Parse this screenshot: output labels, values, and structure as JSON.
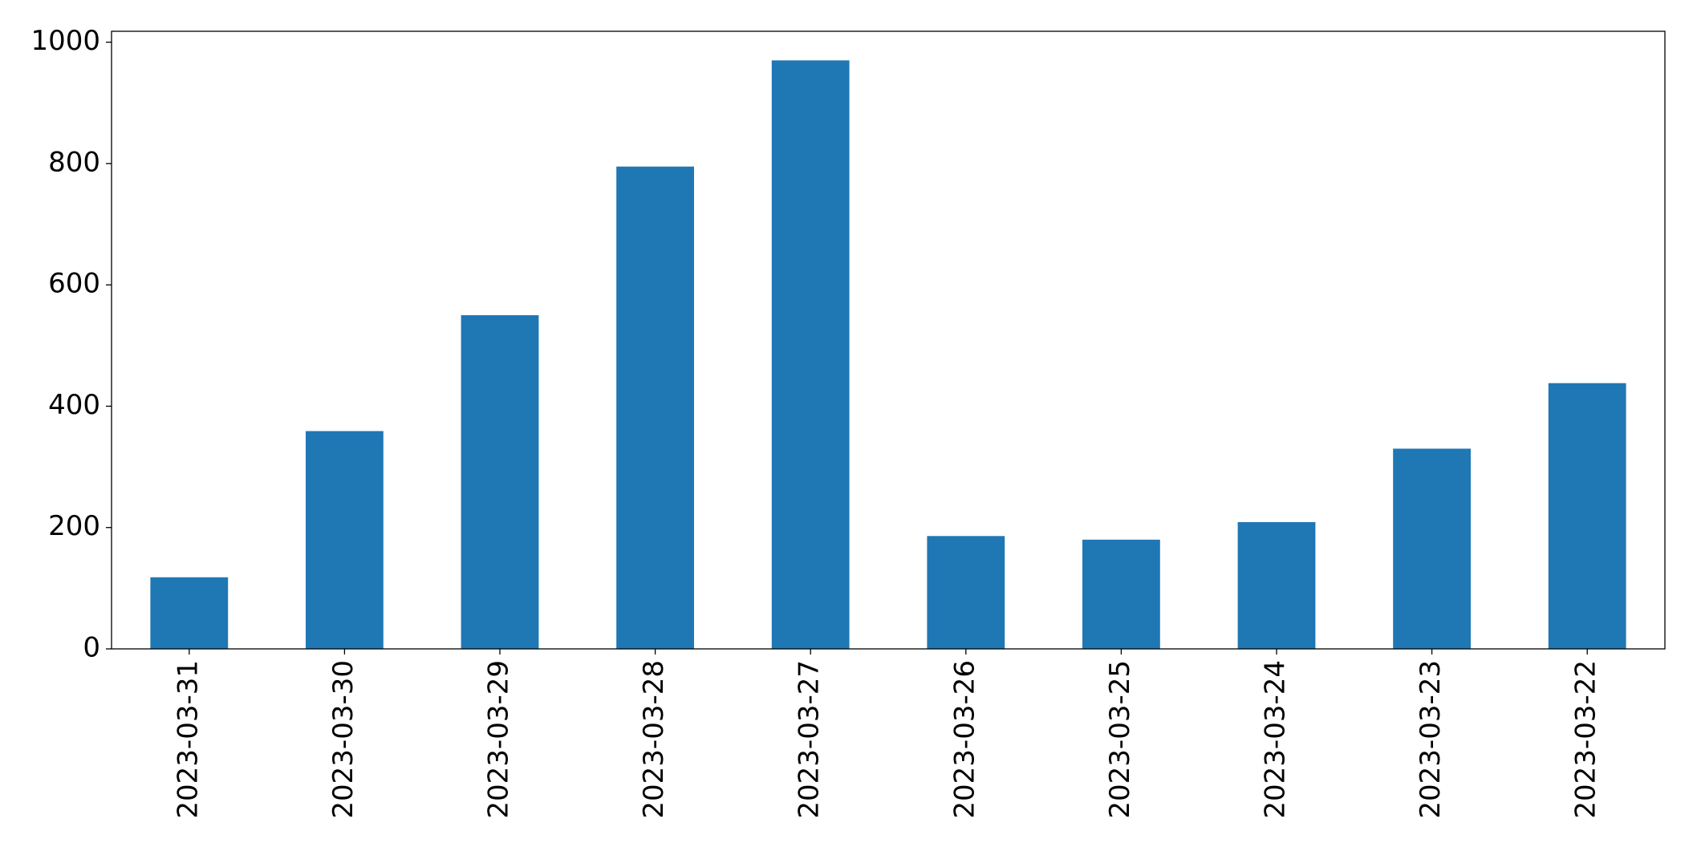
{
  "chart_data": {
    "type": "bar",
    "categories": [
      "2023-03-31",
      "2023-03-30",
      "2023-03-29",
      "2023-03-28",
      "2023-03-27",
      "2023-03-26",
      "2023-03-25",
      "2023-03-24",
      "2023-03-23",
      "2023-03-22"
    ],
    "values": [
      118,
      359,
      550,
      795,
      970,
      186,
      180,
      209,
      330,
      438
    ],
    "color": "#1f77b4",
    "ylim": [
      0,
      1018
    ],
    "yticks": [
      0,
      200,
      400,
      600,
      800,
      1000
    ],
    "grid": false
  }
}
